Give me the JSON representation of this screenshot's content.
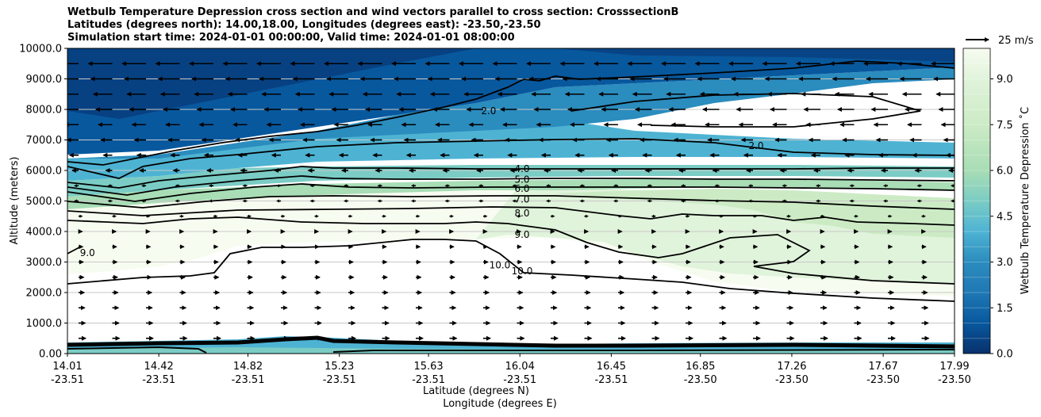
{
  "chart_data": {
    "type": "heatmap",
    "title_lines": [
      "Wetbulb Temperature Depression cross section and wind vectors parallel to cross section: CrosssectionB",
      "Latitudes (degrees north): 14.00,18.00, Longitudes (degrees east): -23.50,-23.50",
      "Simulation start time: 2024-01-01 00:00:00, Valid time: 2024-01-01 08:00:00"
    ],
    "xlabel_lat": "Latitude (degrees N)",
    "xlabel_lon": "Longitude (degrees E)",
    "ylabel": "Altitude (meters)",
    "ylim": [
      0,
      10000
    ],
    "yticks": [
      "0.00",
      "1000.0",
      "2000.0",
      "3000.0",
      "4000.0",
      "5000.0",
      "6000.0",
      "7000.0",
      "8000.0",
      "9000.0",
      "10000.0"
    ],
    "xlim_lat": [
      14.01,
      17.99
    ],
    "xticks": [
      {
        "lat": "14.01",
        "lon": "-23.51"
      },
      {
        "lat": "14.42",
        "lon": "-23.51"
      },
      {
        "lat": "14.82",
        "lon": "-23.51"
      },
      {
        "lat": "15.23",
        "lon": "-23.51"
      },
      {
        "lat": "15.63",
        "lon": "-23.51"
      },
      {
        "lat": "16.04",
        "lon": "-23.51"
      },
      {
        "lat": "16.45",
        "lon": "-23.51"
      },
      {
        "lat": "16.85",
        "lon": "-23.50"
      },
      {
        "lat": "17.26",
        "lon": "-23.50"
      },
      {
        "lat": "17.67",
        "lon": "-23.50"
      },
      {
        "lat": "17.99",
        "lon": "-23.50"
      }
    ],
    "grid": "horizontal",
    "colorbar": {
      "label": "Wetbulb Temperature Depression $^\\circ$C",
      "label_display": "Wetbulb Temperature Depression ˚C",
      "range": [
        0,
        10
      ],
      "ticks": [
        "0.0",
        "1.5",
        "3.0",
        "4.5",
        "6.0",
        "7.5",
        "9.0"
      ],
      "colormap": "GnBu_r",
      "colors": [
        "#08306b",
        "#08589e",
        "#2b8cbe",
        "#4eb3d3",
        "#7bccc4",
        "#a8ddb5",
        "#ccebc5",
        "#f7fcf0",
        "#ffffff"
      ]
    },
    "contours": [
      {
        "label": "2.0",
        "lat": 15.9,
        "alt": 7950
      },
      {
        "label": "2.0",
        "lat": 17.1,
        "alt": 6800
      },
      {
        "label": "4.0",
        "lat": 16.05,
        "alt": 6050
      },
      {
        "label": "5.0",
        "lat": 16.05,
        "alt": 5700
      },
      {
        "label": "6.0",
        "lat": 16.05,
        "alt": 5400
      },
      {
        "label": "7.0",
        "lat": 16.05,
        "alt": 5050
      },
      {
        "label": "8.0",
        "lat": 16.05,
        "alt": 4600
      },
      {
        "label": "9.0",
        "lat": 16.05,
        "alt": 3900
      },
      {
        "label": "10.0",
        "lat": 15.95,
        "alt": 2900
      },
      {
        "label": "10.0",
        "lat": 16.05,
        "alt": 2700
      },
      {
        "label": "9.0",
        "lat": 14.1,
        "alt": 3300
      }
    ],
    "wind_key": {
      "label": "25 m/s",
      "speed": 25
    },
    "wind_vectors_description": "easterly (leftward) above ~5500 m, westerly (rightward) below ~4500 m"
  }
}
